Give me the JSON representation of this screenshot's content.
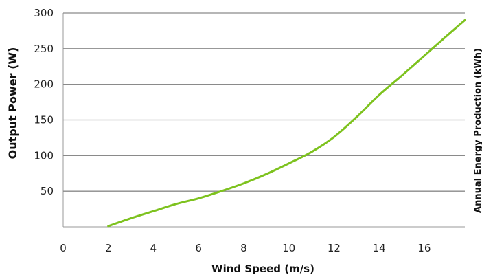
{
  "chart_data": {
    "type": "line",
    "title": "",
    "xlabel": "Wind Speed (m/s)",
    "ylabel": "Output Power (W)",
    "y2label": "Annual Energy Production (kWh)",
    "xlim": [
      0,
      17.8
    ],
    "ylim": [
      0,
      300
    ],
    "xticks": [
      0,
      2,
      4,
      6,
      8,
      10,
      12,
      14,
      16
    ],
    "yticks": [
      50,
      100,
      150,
      200,
      250,
      300
    ],
    "grid": "horizontal",
    "series": [
      {
        "color": "#7dc21e",
        "x": [
          2,
          3,
          4,
          5,
          6,
          7,
          8,
          9,
          10,
          11,
          12,
          13,
          14,
          15,
          16,
          17,
          17.8
        ],
        "values": [
          1,
          12,
          22,
          32,
          40,
          50,
          61,
          74,
          89,
          105,
          126,
          154,
          185,
          212,
          240,
          268,
          290
        ]
      }
    ]
  }
}
